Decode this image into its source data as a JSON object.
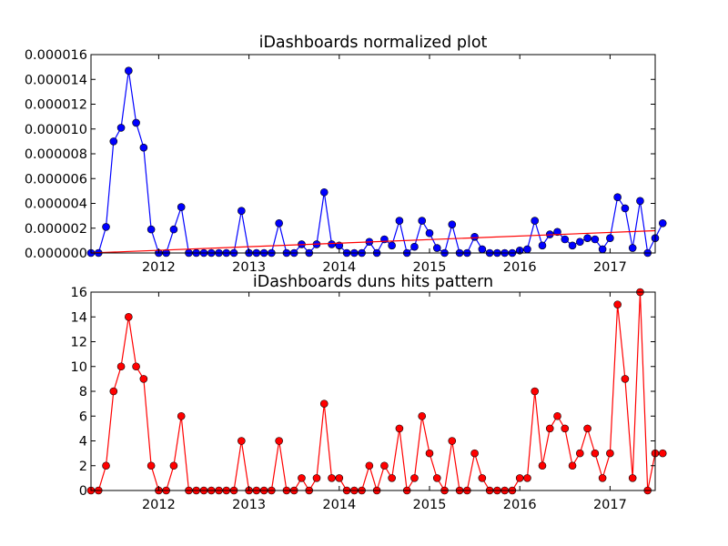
{
  "chart_data": [
    {
      "type": "line",
      "title": "iDashboards normalized plot",
      "xlabel": "",
      "ylabel": "",
      "x_tick_labels": [
        "2012",
        "2013",
        "2014",
        "2015",
        "2016",
        "2017"
      ],
      "x_tick_years": [
        2012,
        2013,
        2014,
        2015,
        2016,
        2017
      ],
      "xlim": [
        2011.25,
        2017.5
      ],
      "ylim": [
        0,
        1.6e-05
      ],
      "y_tick_labels": [
        "0.000000",
        "0.000002",
        "0.000004",
        "0.000006",
        "0.000008",
        "0.000010",
        "0.000012",
        "0.000014",
        "0.000016"
      ],
      "y_tick_values": [
        0,
        2e-06,
        4e-06,
        6e-06,
        8e-06,
        1e-05,
        1.2e-05,
        1.4e-05,
        1.6e-05
      ],
      "grid": false,
      "series": [
        {
          "color": "#0000ff",
          "marker": "circle",
          "x_start": 2011.25,
          "x_step": 0.08333,
          "values": [
            0,
            0,
            2.1e-06,
            9e-06,
            1.01e-05,
            1.47e-05,
            1.05e-05,
            8.5e-06,
            1.9e-06,
            0,
            0,
            1.9e-06,
            3.7e-06,
            0,
            0,
            0,
            0,
            0,
            0,
            0,
            3.4e-06,
            0,
            0,
            0,
            0,
            2.4e-06,
            0,
            0,
            7e-07,
            0,
            7e-07,
            4.9e-06,
            7e-07,
            6e-07,
            0,
            0,
            0,
            9e-07,
            0,
            1.1e-06,
            6e-07,
            2.6e-06,
            0,
            5e-07,
            2.6e-06,
            1.6e-06,
            4e-07,
            0,
            2.3e-06,
            0,
            0,
            1.3e-06,
            3e-07,
            0,
            0,
            0,
            0,
            2e-07,
            3e-07,
            2.6e-06,
            6e-07,
            1.5e-06,
            1.7e-06,
            1.1e-06,
            6e-07,
            9e-07,
            1.2e-06,
            1.1e-06,
            3e-07,
            1.2e-06,
            4.5e-06,
            3.6e-06,
            4e-07,
            4.2e-06,
            0,
            1.2e-06,
            2.4e-06
          ]
        },
        {
          "color": "#ff0000",
          "marker": "none",
          "trend": true,
          "x": [
            2011.25,
            2017.5
          ],
          "values": [
            0,
            1.8e-06
          ]
        }
      ]
    },
    {
      "type": "line",
      "title": "iDashboards duns hits pattern",
      "xlabel": "",
      "ylabel": "",
      "x_tick_labels": [
        "2012",
        "2013",
        "2014",
        "2015",
        "2016",
        "2017"
      ],
      "x_tick_years": [
        2012,
        2013,
        2014,
        2015,
        2016,
        2017
      ],
      "xlim": [
        2011.25,
        2017.5
      ],
      "ylim": [
        0,
        16
      ],
      "y_tick_labels": [
        "0",
        "2",
        "4",
        "6",
        "8",
        "10",
        "12",
        "14",
        "16"
      ],
      "y_tick_values": [
        0,
        2,
        4,
        6,
        8,
        10,
        12,
        14,
        16
      ],
      "grid": false,
      "series": [
        {
          "color": "#ff0000",
          "marker": "circle",
          "x_start": 2011.25,
          "x_step": 0.08333,
          "values": [
            0,
            0,
            2,
            8,
            10,
            14,
            10,
            9,
            2,
            0,
            0,
            2,
            6,
            0,
            0,
            0,
            0,
            0,
            0,
            0,
            4,
            0,
            0,
            0,
            0,
            4,
            0,
            0,
            1,
            0,
            1,
            7,
            1,
            1,
            0,
            0,
            0,
            2,
            0,
            2,
            1,
            5,
            0,
            1,
            6,
            3,
            1,
            0,
            4,
            0,
            0,
            3,
            1,
            0,
            0,
            0,
            0,
            1,
            1,
            8,
            2,
            5,
            6,
            5,
            2,
            3,
            5,
            3,
            1,
            3,
            15,
            9,
            1,
            16,
            0,
            3,
            3
          ]
        }
      ]
    }
  ]
}
